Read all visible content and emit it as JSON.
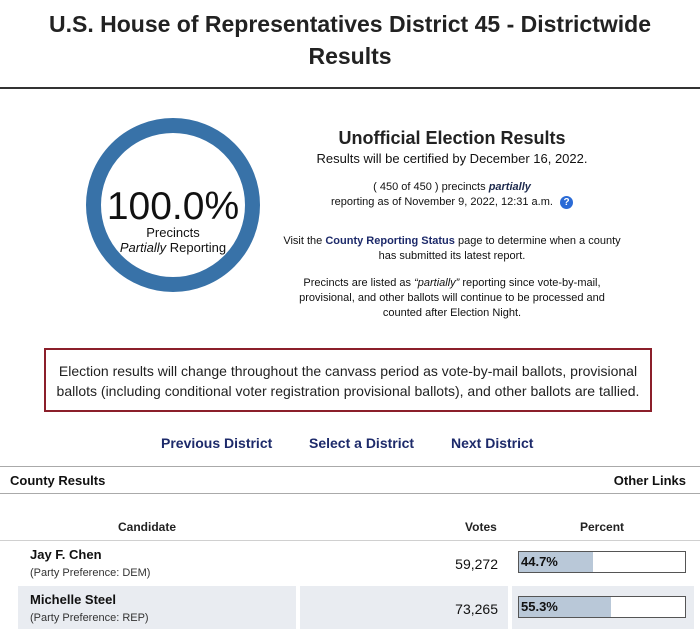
{
  "page": {
    "title": "U.S. House of Representatives District 45 - Districtwide Results"
  },
  "reporting_ring": {
    "percent": "100.0%",
    "line1": "Precincts",
    "line2_italic": "Partially",
    "line2_rest": "Reporting",
    "fraction": 1.0
  },
  "summary": {
    "title": "Unofficial Election Results",
    "certified": "Results will be certified by December 16, 2022.",
    "precincts_prefix": "( 450 of 450 ) precincts",
    "precincts_italic": "partially",
    "precincts_suffix": "reporting as of November 9, 2022, 12:31 a.m.",
    "help_icon": "?",
    "visit_prefix": "Visit the",
    "visit_link": "County Reporting Status",
    "visit_suffix": "page to determine when a county has submitted its latest report.",
    "note_prefix": "Precincts are listed as",
    "note_italic": "“partially”",
    "note_suffix": "reporting since vote-by-mail, provisional, and other ballots will continue to be processed and counted after Election Night."
  },
  "notice": {
    "text": "Election results will change throughout the canvass period as vote-by-mail ballots, provisional ballots (including conditional voter registration provisional ballots), and other ballots are tallied."
  },
  "nav": {
    "previous": "Previous District",
    "select": "Select a District",
    "next": "Next District"
  },
  "section_bar": {
    "left": "County Results",
    "right": "Other Links"
  },
  "table": {
    "headers": {
      "candidate": "Candidate",
      "votes": "Votes",
      "percent": "Percent"
    },
    "rows": [
      {
        "name": "Jay F. Chen",
        "party": "(Party Preference: DEM)",
        "votes": "59,272",
        "percent": "44.7%",
        "fraction": 0.447
      },
      {
        "name": "Michelle Steel",
        "party": "(Party Preference: REP)",
        "votes": "73,265",
        "percent": "55.3%",
        "fraction": 0.553
      }
    ]
  },
  "colors": {
    "ring": "#3872a8",
    "link": "#1d2a6a",
    "notice_border": "#8b1f2a",
    "bar_fill": "#b9c8d8",
    "alt_row": "#e9ecf1"
  }
}
